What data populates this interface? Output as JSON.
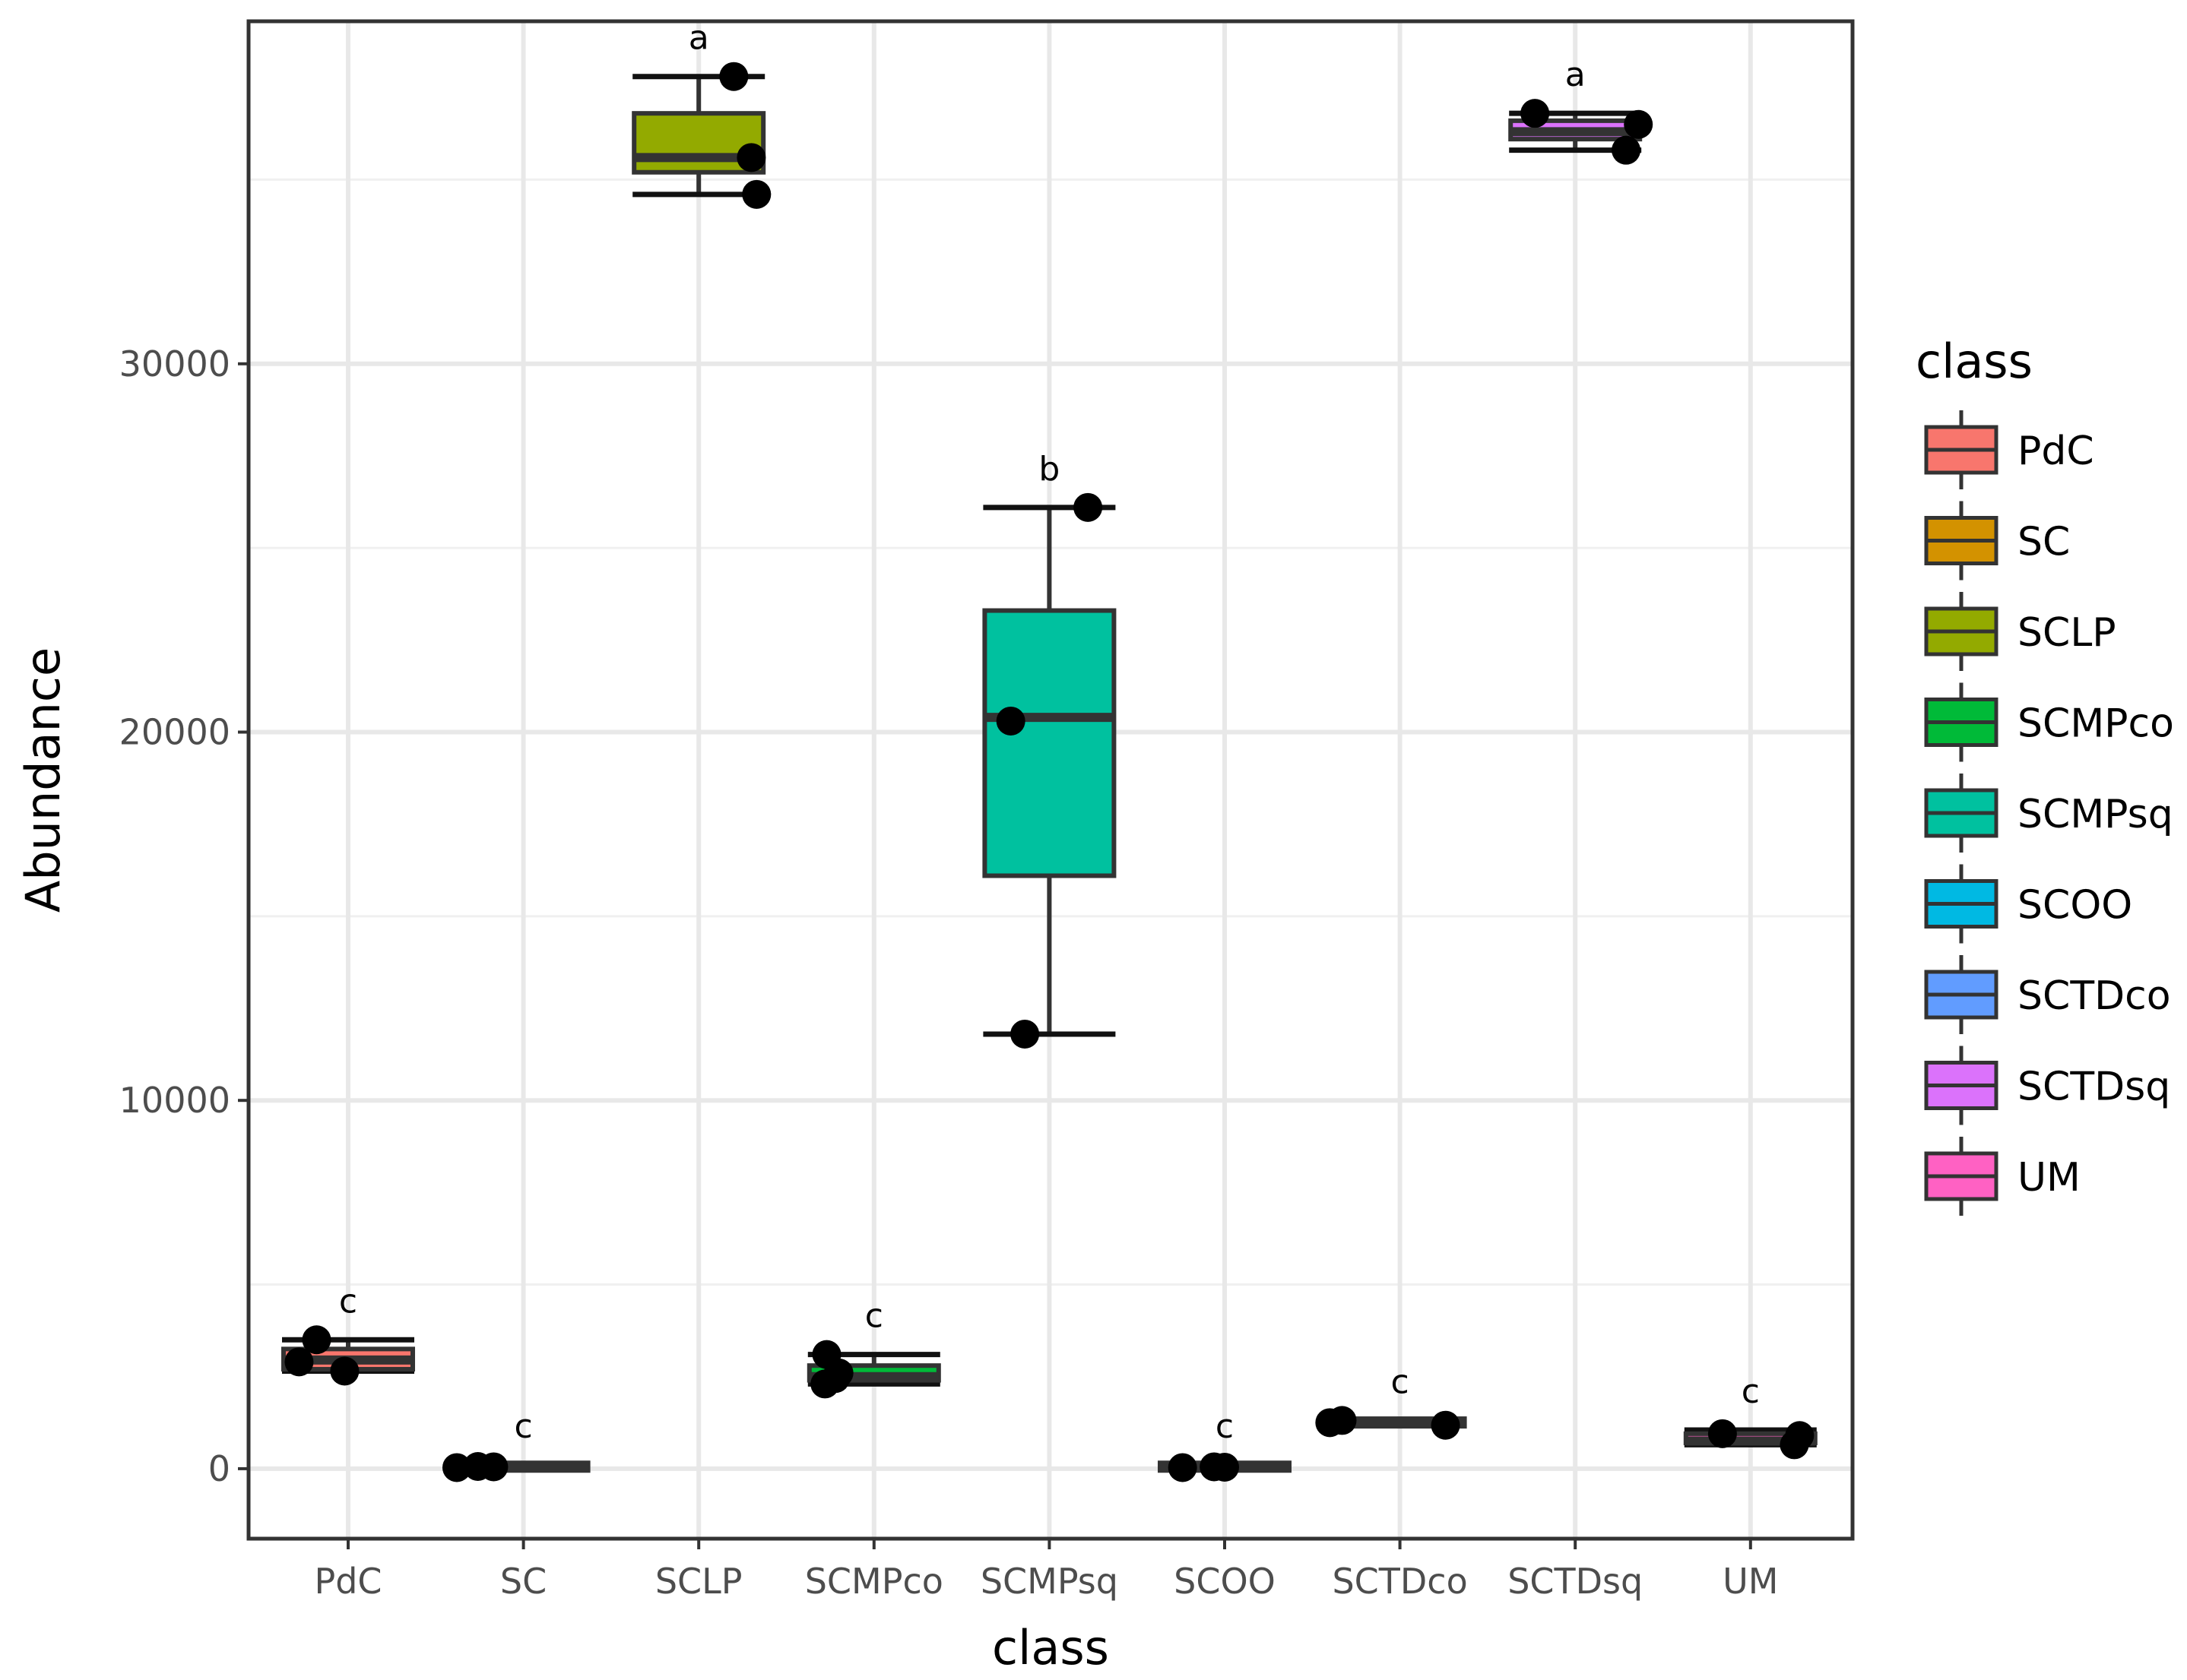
{
  "chart_data": {
    "type": "boxplot",
    "xlabel": "class",
    "ylabel": "Abundance",
    "ylim": [
      -1900,
      39300
    ],
    "y_ticks": [
      0,
      10000,
      20000,
      30000
    ],
    "y_tick_labels": [
      "0",
      "10000",
      "20000",
      "30000"
    ],
    "y_minor": [
      5000,
      15000,
      25000,
      35000
    ],
    "grid": true,
    "legend": {
      "title": "class",
      "position": "right",
      "entries": [
        "PdC",
        "SC",
        "SCLP",
        "SCMPco",
        "SCMPsq",
        "SCOO",
        "SCTDco",
        "SCTDsq",
        "UM"
      ]
    },
    "groups": [
      {
        "name": "PdC",
        "color": "#F8766D",
        "min": 2650,
        "q1": 2700,
        "median": 2950,
        "q3": 3250,
        "max": 3500,
        "points": [
          2900,
          3500,
          2650
        ],
        "jitter": [
          -0.28,
          -0.18,
          -0.02
        ],
        "sig": "c"
      },
      {
        "name": "SC",
        "color": "#D39200",
        "min": 20,
        "q1": 30,
        "median": 50,
        "q3": 80,
        "max": 100,
        "points": [
          30,
          60,
          50
        ],
        "jitter": [
          -0.38,
          -0.26,
          -0.17
        ],
        "sig": "c"
      },
      {
        "name": "SCLP",
        "color": "#93AA00",
        "min": 34600,
        "q1": 35200,
        "median": 35600,
        "q3": 36800,
        "max": 37800,
        "points": [
          37800,
          35600,
          34600
        ],
        "jitter": [
          0.2,
          0.3,
          0.33
        ],
        "sig": "a"
      },
      {
        "name": "SCMPco",
        "color": "#00BA38",
        "min": 2300,
        "q1": 2400,
        "median": 2500,
        "q3": 2800,
        "max": 3100,
        "points": [
          3100,
          2600,
          2300,
          2450
        ],
        "jitter": [
          -0.27,
          -0.2,
          -0.28,
          -0.22
        ],
        "sig": "c"
      },
      {
        "name": "SCMPsq",
        "color": "#00C19F",
        "min": 11800,
        "q1": 16100,
        "median": 20400,
        "q3": 23300,
        "max": 26100,
        "points": [
          26100,
          20300,
          11800
        ],
        "jitter": [
          0.22,
          -0.22,
          -0.14
        ],
        "sig": "b"
      },
      {
        "name": "SCOO",
        "color": "#00B9E3",
        "min": 20,
        "q1": 30,
        "median": 50,
        "q3": 80,
        "max": 100,
        "points": [
          30,
          50,
          40
        ],
        "jitter": [
          -0.24,
          -0.06,
          0.0
        ],
        "sig": "c"
      },
      {
        "name": "SCTDco",
        "color": "#619CFF",
        "min": 1200,
        "q1": 1220,
        "median": 1260,
        "q3": 1290,
        "max": 1310,
        "points": [
          1250,
          1310,
          1180
        ],
        "jitter": [
          -0.4,
          -0.33,
          0.26
        ],
        "sig": "c"
      },
      {
        "name": "SCTDsq",
        "color": "#DB72FB",
        "min": 35800,
        "q1": 36100,
        "median": 36300,
        "q3": 36600,
        "max": 36800,
        "points": [
          36800,
          36500,
          35800
        ],
        "jitter": [
          -0.23,
          0.36,
          0.29
        ],
        "sig": "a"
      },
      {
        "name": "UM",
        "color": "#FF61C3",
        "min": 650,
        "q1": 700,
        "median": 750,
        "q3": 950,
        "max": 1050,
        "points": [
          950,
          900,
          650
        ],
        "jitter": [
          -0.16,
          0.28,
          0.25
        ],
        "sig": "c"
      }
    ]
  }
}
